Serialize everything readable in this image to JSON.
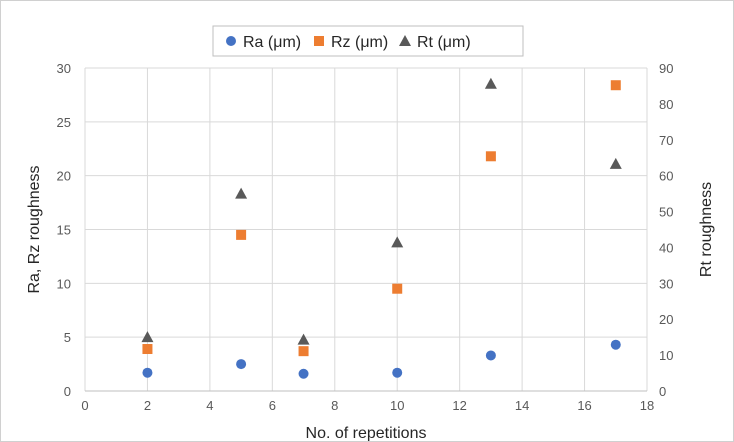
{
  "chart_data": {
    "type": "scatter",
    "title": "",
    "xlabel": "No. of repetitions",
    "ylabel": "Ra, Rz roughness",
    "y2label": "Rt roughness",
    "xlim": [
      0,
      18
    ],
    "ylim": [
      0,
      30
    ],
    "y2lim": [
      0,
      90
    ],
    "xticks": [
      0,
      2,
      4,
      6,
      8,
      10,
      12,
      14,
      16,
      18
    ],
    "yticks": [
      0,
      5,
      10,
      15,
      20,
      25,
      30
    ],
    "y2ticks": [
      0,
      10,
      20,
      30,
      40,
      50,
      60,
      70,
      80,
      90
    ],
    "grid": true,
    "legend_position": "top",
    "series": [
      {
        "name": "Ra (μm)",
        "axis": "left",
        "marker": "circle",
        "color": "#4472C4",
        "x": [
          2,
          5,
          7,
          10,
          13,
          17
        ],
        "y": [
          1.7,
          2.5,
          1.6,
          1.7,
          3.3,
          4.3
        ]
      },
      {
        "name": "Rz (μm)",
        "axis": "left",
        "marker": "square",
        "color": "#ED7D31",
        "x": [
          2,
          5,
          7,
          10,
          13,
          17
        ],
        "y": [
          3.9,
          14.5,
          3.7,
          9.5,
          21.8,
          28.4
        ]
      },
      {
        "name": "Rt (μm)",
        "axis": "right",
        "marker": "triangle",
        "color": "#595959",
        "x": [
          2,
          5,
          7,
          10,
          13,
          17
        ],
        "y": [
          15,
          55,
          14.3,
          41.4,
          85.6,
          63.3
        ]
      }
    ]
  }
}
